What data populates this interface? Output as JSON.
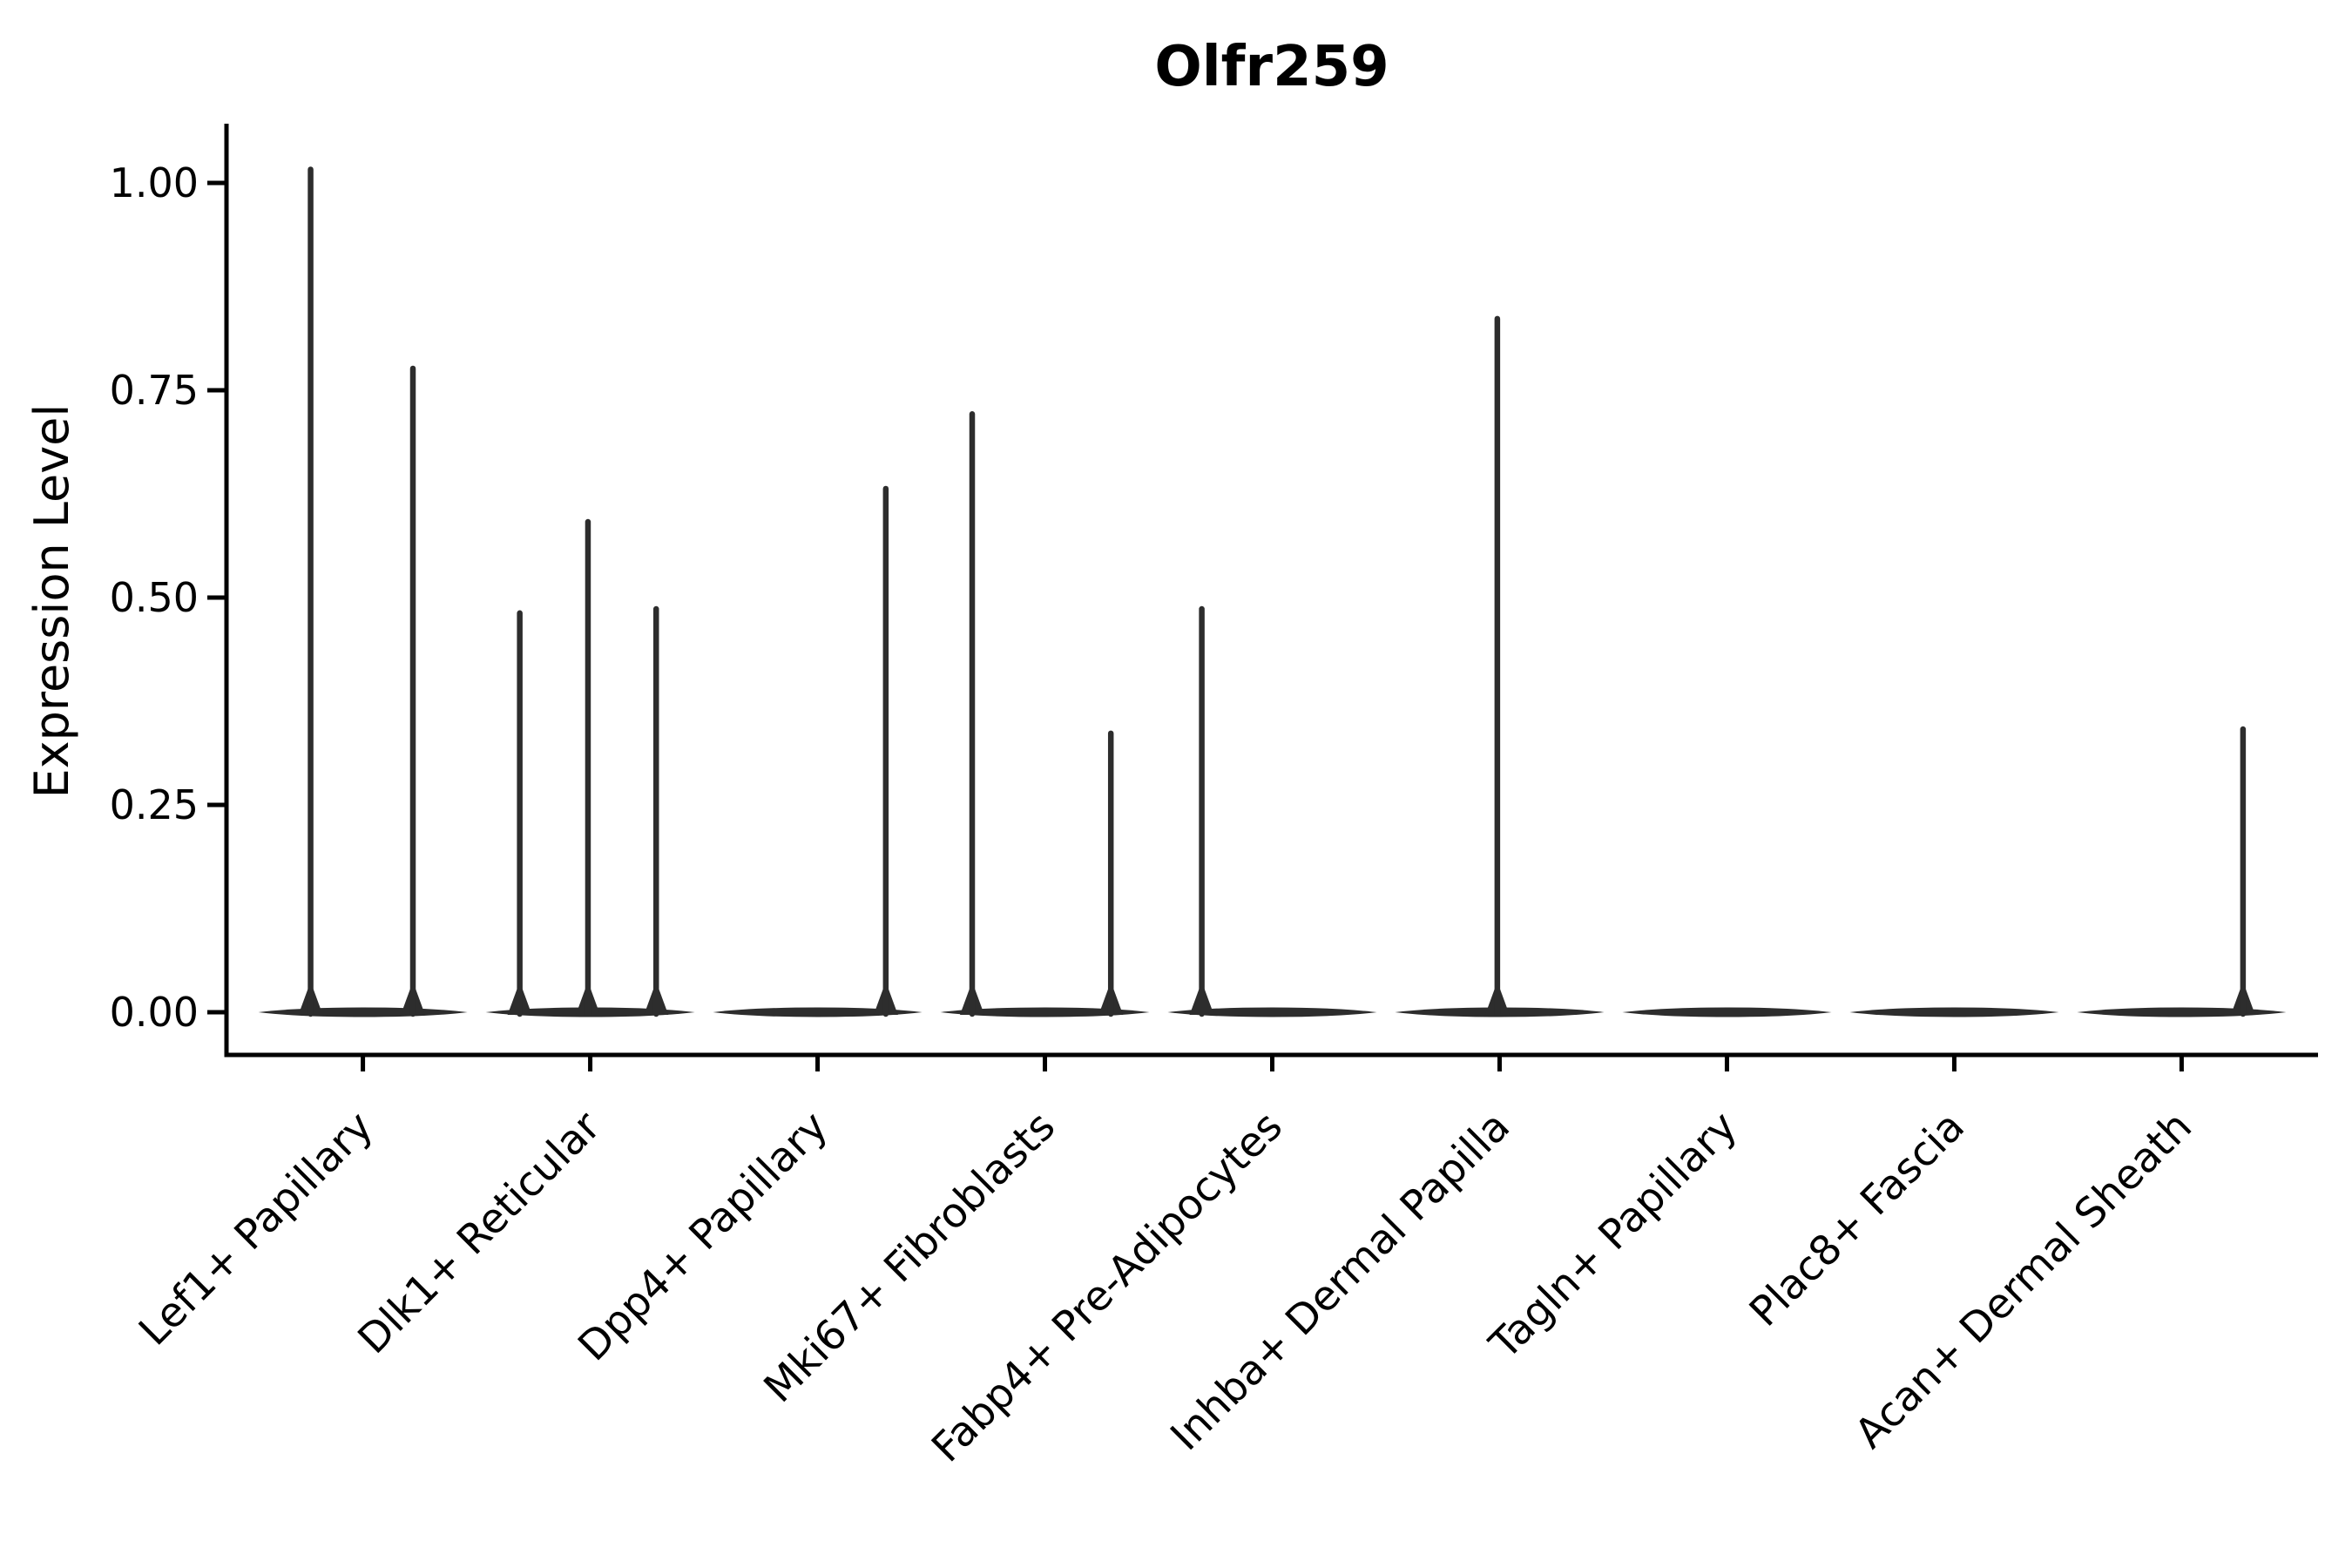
{
  "chart_data": {
    "type": "violin",
    "title": "Olfr259",
    "xlabel": "",
    "ylabel": "Expression Level",
    "categories": [
      "Lef1+ Papillary",
      "Dlk1+ Reticular",
      "Dpp4+ Papillary",
      "Mki67+ Fibroblasts",
      "Fabp4+ Pre-Adipocytes",
      "Inhba+ Dermal Papilla",
      "Tagln+ Papillary",
      "Plac8+ Fascia",
      "Acan+ Dermal Sheath"
    ],
    "ytick_values": [
      0.0,
      0.25,
      0.5,
      0.75,
      1.0
    ],
    "ytick_labels": [
      "0.00",
      "0.25",
      "0.50",
      "0.75",
      "1.00"
    ],
    "ylim": [
      -0.05,
      1.07
    ],
    "grid": false,
    "legend_position": "none",
    "violin_width_fraction": 0.92,
    "violins": [
      {
        "category": "Lef1+ Papillary",
        "baseline_value": 0.0,
        "spikes": [
          {
            "offset": -0.23,
            "value": 1.02
          },
          {
            "offset": 0.22,
            "value": 0.78
          }
        ]
      },
      {
        "category": "Dlk1+ Reticular",
        "baseline_value": 0.0,
        "spikes": [
          {
            "offset": -0.31,
            "value": 0.485
          },
          {
            "offset": -0.01,
            "value": 0.595
          },
          {
            "offset": 0.29,
            "value": 0.49
          }
        ]
      },
      {
        "category": "Dpp4+ Papillary",
        "baseline_value": 0.0,
        "spikes": [
          {
            "offset": 0.3,
            "value": 0.635
          }
        ]
      },
      {
        "category": "Mki67+ Fibroblasts",
        "baseline_value": 0.0,
        "spikes": [
          {
            "offset": -0.32,
            "value": 0.725
          },
          {
            "offset": 0.29,
            "value": 0.34
          }
        ]
      },
      {
        "category": "Fabp4+ Pre-Adipocytes",
        "baseline_value": 0.0,
        "spikes": [
          {
            "offset": -0.31,
            "value": 0.49
          }
        ]
      },
      {
        "category": "Inhba+ Dermal Papilla",
        "baseline_value": 0.0,
        "spikes": [
          {
            "offset": -0.01,
            "value": 0.84
          }
        ]
      },
      {
        "category": "Tagln+ Papillary",
        "baseline_value": 0.0,
        "spikes": []
      },
      {
        "category": "Plac8+ Fascia",
        "baseline_value": 0.0,
        "spikes": []
      },
      {
        "category": "Acan+ Dermal Sheath",
        "baseline_value": 0.0,
        "spikes": [
          {
            "offset": 0.27,
            "value": 0.345
          }
        ]
      }
    ],
    "colors": {
      "violin": "#2d2d2d",
      "axis": "#000000",
      "text": "#000000",
      "background": "#ffffff"
    }
  }
}
